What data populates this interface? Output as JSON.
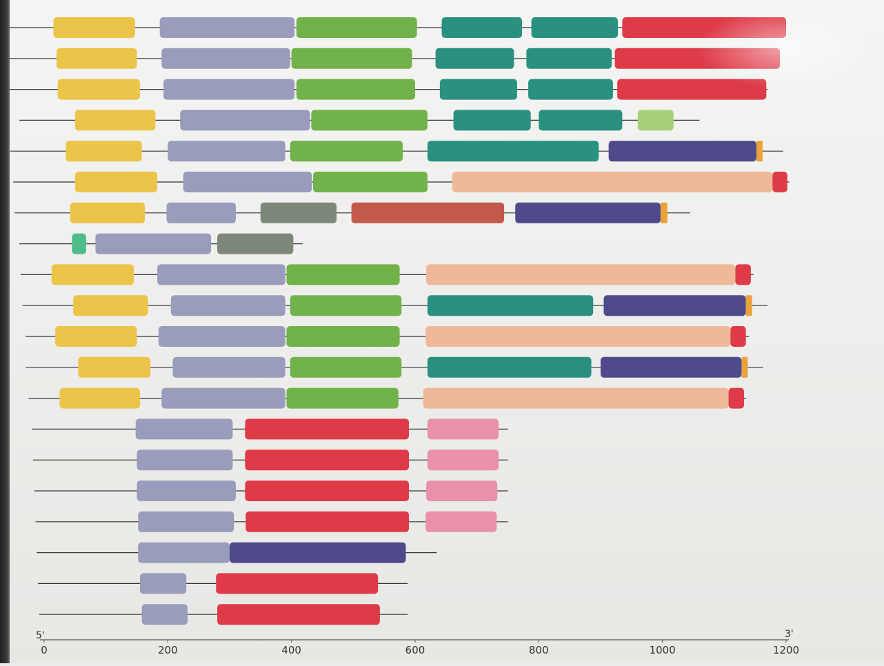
{
  "chart_data": {
    "type": "gene-structure",
    "x_axis": {
      "range": [
        0,
        1200
      ],
      "ticks": [
        0,
        200,
        400,
        600,
        800,
        1000,
        1200
      ],
      "end_label_left": "5'",
      "end_label_right": "3'"
    },
    "colors": {
      "yellow": "#ecc44a",
      "lavender": "#9a9cbc",
      "green": "#72b24a",
      "teal": "#2a9181",
      "red": "#de3a48",
      "lightgreen": "#a7d07a",
      "purple": "#4f4a8c",
      "peach": "#efb898",
      "gray": "#7e887a",
      "rust": "#c2594a",
      "mint": "#4fbd8b",
      "pink": "#e991aa",
      "orange": "#eca23a"
    },
    "rows": [
      {
        "line": [
          -60,
          1200
        ],
        "segments": [
          {
            "s": 15,
            "e": 147,
            "c": "yellow"
          },
          {
            "s": 187,
            "e": 405,
            "c": "lavender"
          },
          {
            "s": 408,
            "e": 603,
            "c": "green"
          },
          {
            "s": 643,
            "e": 773,
            "c": "teal"
          },
          {
            "s": 788,
            "e": 928,
            "c": "teal"
          },
          {
            "s": 935,
            "e": 1200,
            "c": "red"
          }
        ]
      },
      {
        "line": [
          -60,
          1190
        ],
        "segments": [
          {
            "s": 20,
            "e": 150,
            "c": "yellow"
          },
          {
            "s": 190,
            "e": 398,
            "c": "lavender"
          },
          {
            "s": 400,
            "e": 595,
            "c": "green"
          },
          {
            "s": 633,
            "e": 760,
            "c": "teal"
          },
          {
            "s": 780,
            "e": 918,
            "c": "teal"
          },
          {
            "s": 923,
            "e": 1190,
            "c": "red"
          }
        ]
      },
      {
        "line": [
          -60,
          1170
        ],
        "segments": [
          {
            "s": 22,
            "e": 155,
            "c": "yellow"
          },
          {
            "s": 193,
            "e": 405,
            "c": "lavender"
          },
          {
            "s": 408,
            "e": 600,
            "c": "green"
          },
          {
            "s": 640,
            "e": 765,
            "c": "teal"
          },
          {
            "s": 783,
            "e": 920,
            "c": "teal"
          },
          {
            "s": 927,
            "e": 1168,
            "c": "red"
          }
        ]
      },
      {
        "line": [
          -40,
          1060
        ],
        "segments": [
          {
            "s": 50,
            "e": 180,
            "c": "yellow"
          },
          {
            "s": 220,
            "e": 430,
            "c": "lavender"
          },
          {
            "s": 432,
            "e": 620,
            "c": "green"
          },
          {
            "s": 662,
            "e": 787,
            "c": "teal"
          },
          {
            "s": 800,
            "e": 935,
            "c": "teal"
          },
          {
            "s": 960,
            "e": 1018,
            "c": "lightgreen"
          }
        ]
      },
      {
        "line": [
          -55,
          1195
        ],
        "segments": [
          {
            "s": 35,
            "e": 158,
            "c": "yellow"
          },
          {
            "s": 200,
            "e": 390,
            "c": "lavender"
          },
          {
            "s": 398,
            "e": 580,
            "c": "green"
          },
          {
            "s": 620,
            "e": 897,
            "c": "teal"
          },
          {
            "s": 913,
            "e": 1152,
            "c": "purple"
          },
          {
            "s": 1152,
            "e": 1162,
            "c": "orange"
          }
        ]
      },
      {
        "line": [
          -50,
          1205
        ],
        "segments": [
          {
            "s": 50,
            "e": 183,
            "c": "yellow"
          },
          {
            "s": 225,
            "e": 433,
            "c": "lavender"
          },
          {
            "s": 435,
            "e": 620,
            "c": "green"
          },
          {
            "s": 660,
            "e": 1178,
            "c": "peach"
          },
          {
            "s": 1178,
            "e": 1202,
            "c": "red"
          }
        ]
      },
      {
        "line": [
          -48,
          1045
        ],
        "segments": [
          {
            "s": 42,
            "e": 163,
            "c": "yellow"
          },
          {
            "s": 198,
            "e": 310,
            "c": "lavender"
          },
          {
            "s": 350,
            "e": 473,
            "c": "gray"
          },
          {
            "s": 497,
            "e": 744,
            "c": "rust"
          },
          {
            "s": 762,
            "e": 997,
            "c": "purple"
          },
          {
            "s": 997,
            "e": 1008,
            "c": "orange"
          }
        ]
      },
      {
        "line": [
          -40,
          418
        ],
        "segments": [
          {
            "s": 45,
            "e": 68,
            "c": "mint"
          },
          {
            "s": 83,
            "e": 270,
            "c": "lavender"
          },
          {
            "s": 280,
            "e": 403,
            "c": "gray"
          }
        ]
      },
      {
        "line": [
          -38,
          1147
        ],
        "segments": [
          {
            "s": 12,
            "e": 145,
            "c": "yellow"
          },
          {
            "s": 183,
            "e": 390,
            "c": "lavender"
          },
          {
            "s": 392,
            "e": 575,
            "c": "green"
          },
          {
            "s": 618,
            "e": 1118,
            "c": "peach"
          },
          {
            "s": 1118,
            "e": 1143,
            "c": "red"
          }
        ]
      },
      {
        "line": [
          -35,
          1170
        ],
        "segments": [
          {
            "s": 47,
            "e": 168,
            "c": "yellow"
          },
          {
            "s": 205,
            "e": 390,
            "c": "lavender"
          },
          {
            "s": 398,
            "e": 578,
            "c": "green"
          },
          {
            "s": 620,
            "e": 888,
            "c": "teal"
          },
          {
            "s": 905,
            "e": 1135,
            "c": "purple"
          },
          {
            "s": 1135,
            "e": 1145,
            "c": "orange"
          }
        ]
      },
      {
        "line": [
          -30,
          1140
        ],
        "segments": [
          {
            "s": 18,
            "e": 150,
            "c": "yellow"
          },
          {
            "s": 185,
            "e": 390,
            "c": "lavender"
          },
          {
            "s": 392,
            "e": 575,
            "c": "green"
          },
          {
            "s": 617,
            "e": 1110,
            "c": "peach"
          },
          {
            "s": 1110,
            "e": 1135,
            "c": "red"
          }
        ]
      },
      {
        "line": [
          -30,
          1163
        ],
        "segments": [
          {
            "s": 55,
            "e": 172,
            "c": "yellow"
          },
          {
            "s": 208,
            "e": 390,
            "c": "lavender"
          },
          {
            "s": 398,
            "e": 578,
            "c": "green"
          },
          {
            "s": 620,
            "e": 885,
            "c": "teal"
          },
          {
            "s": 900,
            "e": 1128,
            "c": "purple"
          },
          {
            "s": 1128,
            "e": 1138,
            "c": "orange"
          }
        ]
      },
      {
        "line": [
          -25,
          1135
        ],
        "segments": [
          {
            "s": 25,
            "e": 155,
            "c": "yellow"
          },
          {
            "s": 190,
            "e": 390,
            "c": "lavender"
          },
          {
            "s": 392,
            "e": 573,
            "c": "green"
          },
          {
            "s": 613,
            "e": 1107,
            "c": "peach"
          },
          {
            "s": 1107,
            "e": 1132,
            "c": "red"
          }
        ]
      },
      {
        "line": [
          -20,
          750
        ],
        "segments": [
          {
            "s": 148,
            "e": 305,
            "c": "lavender"
          },
          {
            "s": 325,
            "e": 590,
            "c": "red"
          },
          {
            "s": 620,
            "e": 735,
            "c": "pink"
          }
        ]
      },
      {
        "line": [
          -18,
          750
        ],
        "segments": [
          {
            "s": 150,
            "e": 305,
            "c": "lavender"
          },
          {
            "s": 325,
            "e": 590,
            "c": "red"
          },
          {
            "s": 620,
            "e": 735,
            "c": "pink"
          }
        ]
      },
      {
        "line": [
          -16,
          750
        ],
        "segments": [
          {
            "s": 150,
            "e": 310,
            "c": "lavender"
          },
          {
            "s": 325,
            "e": 590,
            "c": "red"
          },
          {
            "s": 618,
            "e": 733,
            "c": "pink"
          }
        ]
      },
      {
        "line": [
          -14,
          750
        ],
        "segments": [
          {
            "s": 152,
            "e": 307,
            "c": "lavender"
          },
          {
            "s": 326,
            "e": 590,
            "c": "red"
          },
          {
            "s": 617,
            "e": 732,
            "c": "pink"
          }
        ]
      },
      {
        "line": [
          -12,
          635
        ],
        "segments": [
          {
            "s": 152,
            "e": 300,
            "c": "lavender"
          },
          {
            "s": 300,
            "e": 585,
            "c": "purple"
          }
        ]
      },
      {
        "line": [
          -10,
          588
        ],
        "segments": [
          {
            "s": 155,
            "e": 230,
            "c": "lavender"
          },
          {
            "s": 278,
            "e": 540,
            "c": "red"
          }
        ]
      },
      {
        "line": [
          -8,
          588
        ],
        "segments": [
          {
            "s": 158,
            "e": 232,
            "c": "lavender"
          },
          {
            "s": 280,
            "e": 543,
            "c": "red"
          }
        ]
      }
    ]
  }
}
